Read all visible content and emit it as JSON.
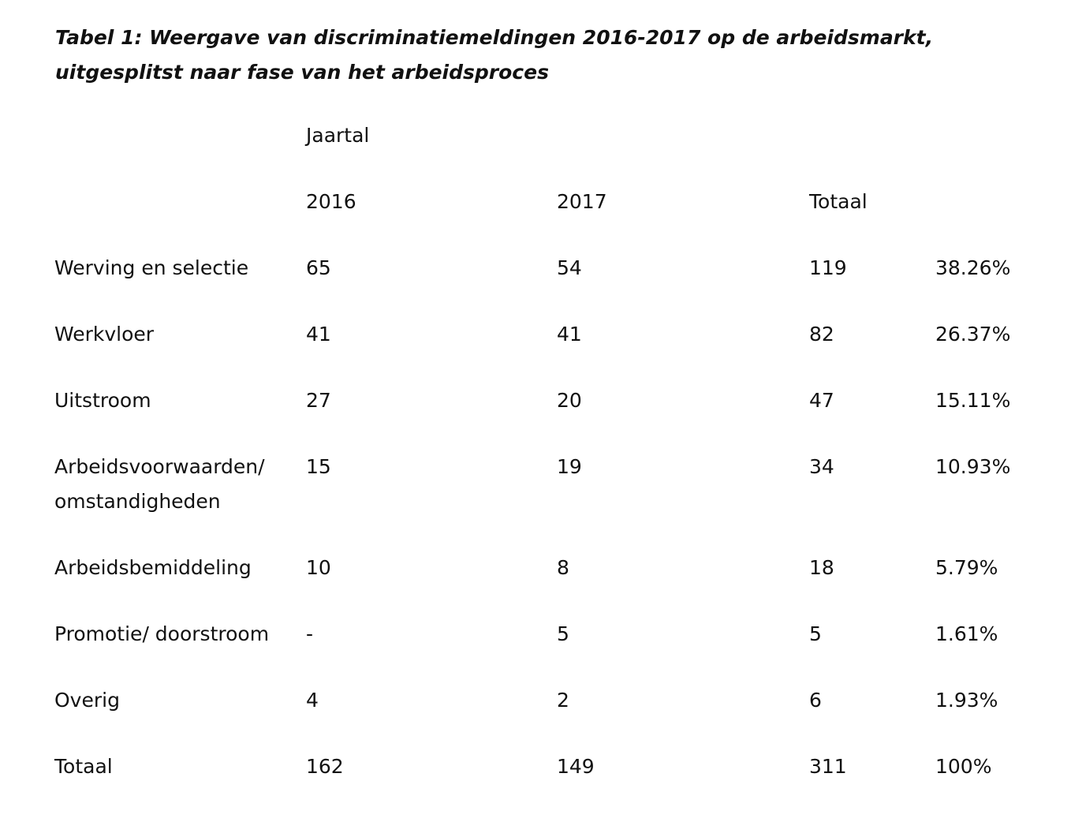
{
  "title": "Tabel 1: Weergave van discriminatiemeldingen 2016-2017 op de arbeidsmarkt, uitgesplitst naar fase van het arbeidsproces",
  "table": {
    "group_header": "Jaartal",
    "headers": {
      "y2016": "2016",
      "y2017": "2017",
      "total": "Totaal"
    },
    "rows": [
      {
        "label": "Werving en selectie",
        "y2016": "65",
        "y2017": "54",
        "total": "119",
        "pct": "38.26%"
      },
      {
        "label": "Werkvloer",
        "y2016": "41",
        "y2017": "41",
        "total": "82",
        "pct": "26.37%"
      },
      {
        "label": "Uitstroom",
        "y2016": "27",
        "y2017": "20",
        "total": "47",
        "pct": "15.11%"
      },
      {
        "label_line1": "Arbeidsvoorwaarden/",
        "label_line2": "omstandigheden",
        "y2016": "15",
        "y2017": "19",
        "total": "34",
        "pct": "10.93%"
      },
      {
        "label": "Arbeidsbemiddeling",
        "y2016": "10",
        "y2017": "8",
        "total": "18",
        "pct": "5.79%"
      },
      {
        "label": "Promotie/ doorstroom",
        "y2016": "-",
        "y2017": "5",
        "total": "5",
        "pct": "1.61%"
      },
      {
        "label": "Overig",
        "y2016": "4",
        "y2017": "2",
        "total": "6",
        "pct": "1.93%"
      },
      {
        "label": "Totaal",
        "y2016": "162",
        "y2017": "149",
        "total": "311",
        "pct": "100%"
      }
    ]
  }
}
